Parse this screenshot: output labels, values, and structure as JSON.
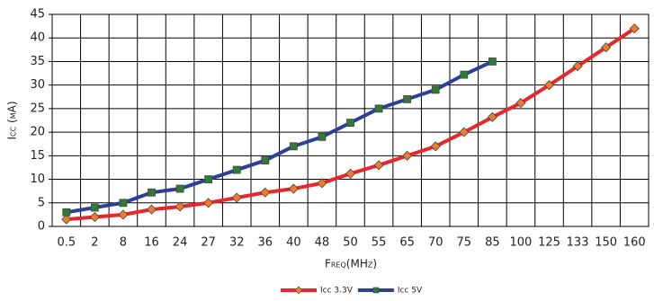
{
  "chart_data": {
    "type": "line",
    "x_label": "Freq(MHz)",
    "y_label": "Icc (mA)",
    "categories": [
      "0.5",
      "2",
      "8",
      "16",
      "24",
      "27",
      "32",
      "36",
      "40",
      "48",
      "50",
      "55",
      "65",
      "70",
      "75",
      "85",
      "100",
      "125",
      "133",
      "150",
      "160"
    ],
    "series": [
      {
        "name": "Icc 3.3V",
        "color": "#e8262b",
        "marker": "diamond",
        "marker_color": "#f07a30",
        "values": [
          1.5,
          2,
          2.5,
          3.6,
          4.2,
          5,
          6.1,
          7.2,
          8,
          9.2,
          11.2,
          13,
          15,
          17,
          20,
          23.2,
          26.2,
          30,
          34,
          38,
          42
        ]
      },
      {
        "name": "Icc 5V",
        "color": "#2e3f9a",
        "marker": "square",
        "marker_color": "#2e7d32",
        "values": [
          3,
          4,
          5,
          7.2,
          8,
          10,
          12,
          14,
          17,
          19,
          22,
          25,
          27,
          29,
          32.2,
          35,
          null,
          null,
          null,
          null,
          null
        ]
      }
    ],
    "ylim": [
      0,
      45
    ],
    "yticks": [
      0,
      5,
      10,
      15,
      20,
      25,
      30,
      35,
      40,
      45
    ],
    "grid": true,
    "legend": "bottom"
  }
}
